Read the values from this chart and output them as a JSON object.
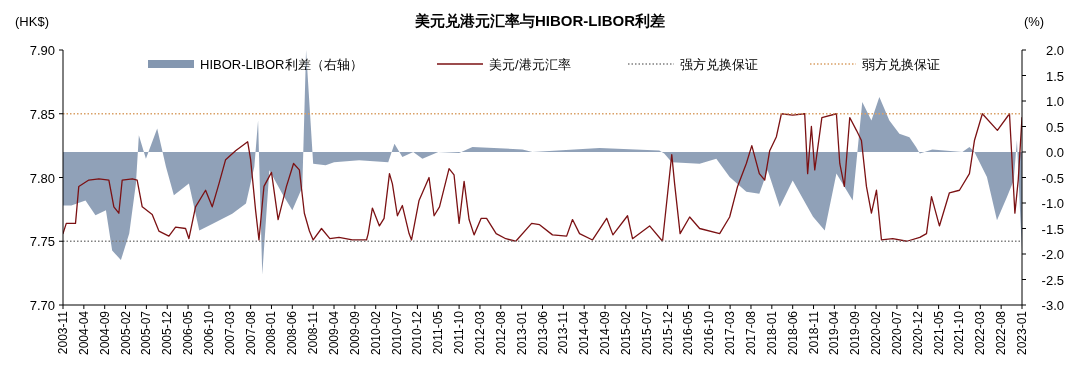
{
  "chart_data": {
    "type": "line",
    "title": "美元兑港元汇率与HIBOR-LIBOR利差",
    "ylabel": "(HK$)",
    "y2label": "(%)",
    "legend": "top",
    "xlim": [
      "2003-11",
      "2023-01"
    ],
    "xticks": [
      "2003-11",
      "2004-04",
      "2004-09",
      "2005-02",
      "2005-07",
      "2005-12",
      "2006-05",
      "2006-10",
      "2007-03",
      "2007-08",
      "2008-01",
      "2008-06",
      "2008-11",
      "2009-04",
      "2009-09",
      "2010-02",
      "2010-07",
      "2010-12",
      "2011-05",
      "2011-10",
      "2012-03",
      "2012-08",
      "2013-01",
      "2013-06",
      "2013-11",
      "2014-04",
      "2014-09",
      "2015-02",
      "2015-07",
      "2015-12",
      "2016-05",
      "2016-10",
      "2017-03",
      "2017-08",
      "2018-01",
      "2018-06",
      "2018-11",
      "2019-04",
      "2019-09",
      "2020-02",
      "2020-07",
      "2020-12",
      "2021-05",
      "2021-10",
      "2022-03",
      "2022-08",
      "2023-01"
    ],
    "ylim": [
      7.7,
      7.9
    ],
    "yticks": [
      {
        "value": 7.7,
        "label": "7.70"
      },
      7.75,
      {
        "value": 7.8,
        "label": "7.80"
      },
      7.85,
      {
        "value": 7.9,
        "label": "7.90"
      }
    ],
    "y2lim": [
      -3.0,
      2.0
    ],
    "y2ticks": [
      {
        "value": -3.0,
        "label": "-3.0"
      },
      {
        "value": -2.5,
        "label": "-2.5"
      },
      {
        "value": -2.0,
        "label": "-2.0"
      },
      {
        "value": -1.5,
        "label": "-1.5"
      },
      {
        "value": -1.0,
        "label": "-1.0"
      },
      {
        "value": -0.5,
        "label": "-0.5"
      },
      {
        "value": 0,
        "label": "0.0"
      },
      {
        "value": 0.5,
        "label": "0.5"
      },
      {
        "value": 1.0,
        "label": "1.0"
      },
      {
        "value": 1.5,
        "label": "1.5"
      },
      {
        "value": 2.0,
        "label": "2.0"
      }
    ],
    "series": [
      {
        "name": "HIBOR-LIBOR利差（右轴）",
        "type": "area",
        "axis": "y2",
        "color": "#8497b0",
        "x": [
          "2003-11-01",
          "2004-01-01",
          "2004-04-13",
          "2004-06-25",
          "2004-09-10",
          "2004-10-25",
          "2004-12-28",
          "2005-02-28",
          "2005-04-16",
          "2005-05-07",
          "2005-06-28",
          "2005-09-19",
          "2005-11-22",
          "2006-01-19",
          "2006-05-07",
          "2006-07-22",
          "2006-10-25",
          "2007-03-19",
          "2007-06-28",
          "2007-08-28",
          "2007-09-25",
          "2007-10-25",
          "2007-12-16",
          "2008-03-19",
          "2008-06-01",
          "2008-08-13",
          "2008-09-10",
          "2008-11-01",
          "2009-02-01",
          "2009-04-01",
          "2009-10-01",
          "2010-05-01",
          "2010-06-16",
          "2010-08-13",
          "2010-11-01",
          "2011-01-07",
          "2011-05-01",
          "2011-10-01",
          "2012-01-07",
          "2013-01-07",
          "2013-03-19",
          "2014-07-22",
          "2015-10-01",
          "2015-11-07",
          "2016-01-01",
          "2016-07-22",
          "2016-11-22",
          "2017-02-28",
          "2017-06-28",
          "2017-10-01",
          "2017-12-01",
          "2018-02-28",
          "2018-06-01",
          "2018-10-28",
          "2019-01-22",
          "2019-04-16",
          "2019-08-13",
          "2019-10-22",
          "2019-12-28",
          "2020-02-25",
          "2020-05-07",
          "2020-07-19",
          "2020-10-01",
          "2020-11-19",
          "2020-12-16",
          "2021-03-16",
          "2021-10-22",
          "2021-12-13",
          "2022-01-19",
          "2022-04-19",
          "2022-07-01",
          "2022-09-13",
          "2022-11-01",
          "2022-11-25",
          "2022-12-19",
          "2023-01-01"
        ],
        "values": [
          -1.05,
          -1.05,
          -0.95,
          -1.24,
          -1.14,
          -1.93,
          -2.12,
          -1.6,
          -0.62,
          0.33,
          -0.13,
          0.46,
          -0.29,
          -0.85,
          -0.62,
          -1.54,
          -1.41,
          -1.21,
          -1.01,
          -0.29,
          0.62,
          -2.4,
          -0.36,
          -0.82,
          -1.14,
          -0.69,
          2.0,
          -0.23,
          -0.26,
          -0.2,
          -0.16,
          -0.2,
          0.16,
          -0.1,
          0,
          -0.13,
          0,
          -0.02,
          0.1,
          0.05,
          0,
          0.08,
          0.03,
          -0.03,
          -0.2,
          -0.23,
          -0.13,
          -0.49,
          -0.78,
          -0.82,
          -0.36,
          -1.08,
          -0.56,
          -1.27,
          -1.54,
          -0.42,
          -0.95,
          0.98,
          0.62,
          1.08,
          0.62,
          0.36,
          0.29,
          0.1,
          -0.03,
          0.05,
          0,
          0.1,
          0,
          -0.49,
          -1.34,
          -0.88,
          -0.56,
          0.23,
          -1.27,
          -1.93
        ]
      },
      {
        "name": "美元/港元汇率",
        "color": "#7b1113",
        "x": [
          "2003-11-01",
          "2003-11-25",
          "2004-02-01",
          "2004-02-25",
          "2004-05-07",
          "2004-07-20",
          "2004-10-01",
          "2004-11-07",
          "2004-12-13",
          "2005-01-07",
          "2005-03-20",
          "2005-04-25",
          "2005-06-01",
          "2005-08-13",
          "2005-10-01",
          "2005-12-13",
          "2006-02-01",
          "2006-04-13",
          "2006-05-07",
          "2006-06-25",
          "2006-09-07",
          "2006-10-25",
          "2006-12-13",
          "2007-02-01",
          "2007-04-13",
          "2007-07-10",
          "2007-08-01",
          "2007-09-07",
          "2007-10-01",
          "2007-11-07",
          "2008-01-01",
          "2008-02-19",
          "2008-04-19",
          "2008-06-10",
          "2008-07-22",
          "2008-08-28",
          "2008-10-04",
          "2008-11-01",
          "2009-01-01",
          "2009-03-01",
          "2009-05-07",
          "2009-08-13",
          "2009-11-25",
          "2009-12-07",
          "2010-01-07",
          "2010-02-28",
          "2010-04-01",
          "2010-05-10",
          "2010-06-01",
          "2010-07-07",
          "2010-08-13",
          "2010-10-01",
          "2010-10-19",
          "2010-12-13",
          "2011-02-25",
          "2011-04-01",
          "2011-05-10",
          "2011-07-19",
          "2011-08-25",
          "2011-10-01",
          "2011-11-07",
          "2011-12-13",
          "2012-01-19",
          "2012-03-10",
          "2012-04-19",
          "2012-06-28",
          "2012-09-07",
          "2012-11-19",
          "2013-03-13",
          "2013-05-10",
          "2013-08-13",
          "2013-11-25",
          "2014-01-07",
          "2014-02-28",
          "2014-06-01",
          "2014-09-13",
          "2014-10-28",
          "2015-02-13",
          "2015-03-19",
          "2015-07-22",
          "2015-10-25",
          "2016-01-01",
          "2016-01-22",
          "2016-03-01",
          "2016-05-10",
          "2016-07-22",
          "2016-12-16",
          "2017-02-28",
          "2017-04-25",
          "2017-06-28",
          "2017-08-07",
          "2017-10-01",
          "2017-11-10",
          "2017-12-16",
          "2018-02-04",
          "2018-03-10",
          "2018-06-01",
          "2018-08-28",
          "2018-09-19",
          "2018-10-16",
          "2018-11-10",
          "2019-01-01",
          "2019-04-16",
          "2019-05-10",
          "2019-06-13",
          "2019-07-22",
          "2019-09-10",
          "2019-10-16",
          "2019-11-22",
          "2019-12-28",
          "2020-02-04",
          "2020-03-10",
          "2020-06-01",
          "2020-09-13",
          "2020-12-16",
          "2021-02-04",
          "2021-03-10",
          "2021-05-07",
          "2021-07-19",
          "2021-10-01",
          "2021-12-13",
          "2022-01-19",
          "2022-03-16",
          "2022-07-04",
          "2022-10-01",
          "2022-11-10",
          "2022-12-04",
          "2023-01-01"
        ],
        "values": [
          7.756,
          7.764,
          7.764,
          7.793,
          7.798,
          7.799,
          7.798,
          7.777,
          7.772,
          7.798,
          7.799,
          7.798,
          7.777,
          7.771,
          7.758,
          7.754,
          7.761,
          7.76,
          7.752,
          7.777,
          7.79,
          7.777,
          7.795,
          7.814,
          7.821,
          7.828,
          7.814,
          7.774,
          7.751,
          7.793,
          7.804,
          7.767,
          7.793,
          7.811,
          7.806,
          7.772,
          7.758,
          7.751,
          7.76,
          7.752,
          7.753,
          7.751,
          7.751,
          7.756,
          7.776,
          7.762,
          7.768,
          7.803,
          7.795,
          7.77,
          7.778,
          7.756,
          7.751,
          7.782,
          7.8,
          7.77,
          7.777,
          7.807,
          7.802,
          7.764,
          7.797,
          7.767,
          7.755,
          7.768,
          7.768,
          7.756,
          7.752,
          7.75,
          7.764,
          7.763,
          7.755,
          7.754,
          7.767,
          7.756,
          7.751,
          7.768,
          7.755,
          7.77,
          7.752,
          7.762,
          7.75,
          7.818,
          7.795,
          7.756,
          7.769,
          7.76,
          7.756,
          7.769,
          7.793,
          7.811,
          7.825,
          7.803,
          7.798,
          7.821,
          7.832,
          7.85,
          7.849,
          7.85,
          7.803,
          7.84,
          7.806,
          7.847,
          7.85,
          7.811,
          7.793,
          7.847,
          7.837,
          7.829,
          7.793,
          7.772,
          7.79,
          7.751,
          7.752,
          7.75,
          7.753,
          7.756,
          7.785,
          7.762,
          7.788,
          7.79,
          7.803,
          7.829,
          7.85,
          7.837,
          7.85,
          7.772,
          7.798,
          7.847
        ]
      }
    ],
    "ref_lines": [
      {
        "axis": "y",
        "value": 7.75,
        "label": "强方兑换保证",
        "color": "#7f7f7f",
        "line_style": "dotted"
      },
      {
        "axis": "y",
        "value": 7.85,
        "label": "弱方兑换保证",
        "color": "#d9a066",
        "line_style": "dotted"
      }
    ]
  }
}
